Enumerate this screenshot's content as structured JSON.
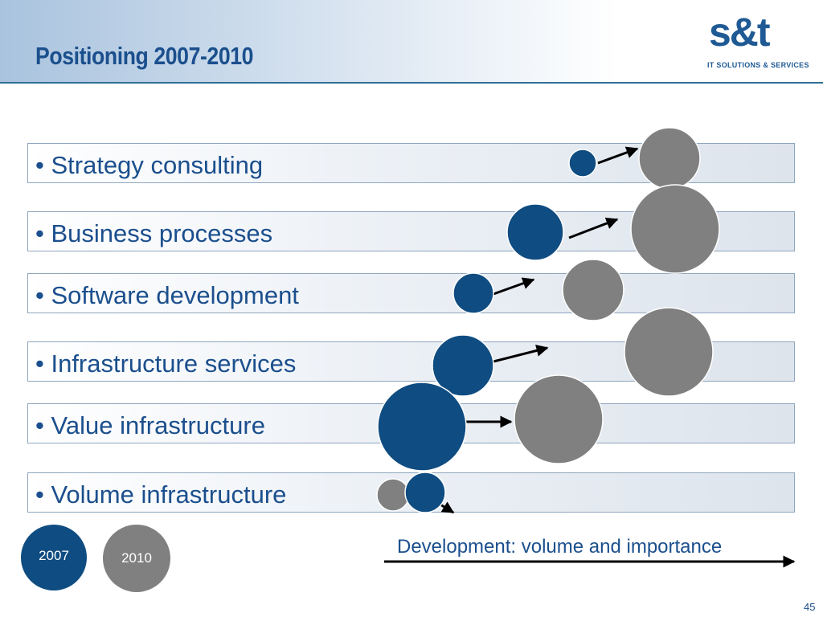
{
  "slide": {
    "title": "Positioning 2007-2010",
    "page_number": "45"
  },
  "logo": {
    "mark": "s&t",
    "tagline": "IT SOLUTIONS & SERVICES"
  },
  "rows": [
    {
      "label": "• Strategy consulting"
    },
    {
      "label": "• Business processes"
    },
    {
      "label": "• Software development"
    },
    {
      "label": "• Infrastructure services"
    },
    {
      "label": "• Value infrastructure"
    },
    {
      "label": "• Volume infrastructure"
    }
  ],
  "legend": {
    "year_2007": "2007",
    "year_2010": "2010"
  },
  "axis": {
    "label": "Development: volume and importance"
  },
  "colors": {
    "year_2007": "#0f4c81",
    "year_2010": "#808080",
    "title": "#1b4f8d"
  }
}
